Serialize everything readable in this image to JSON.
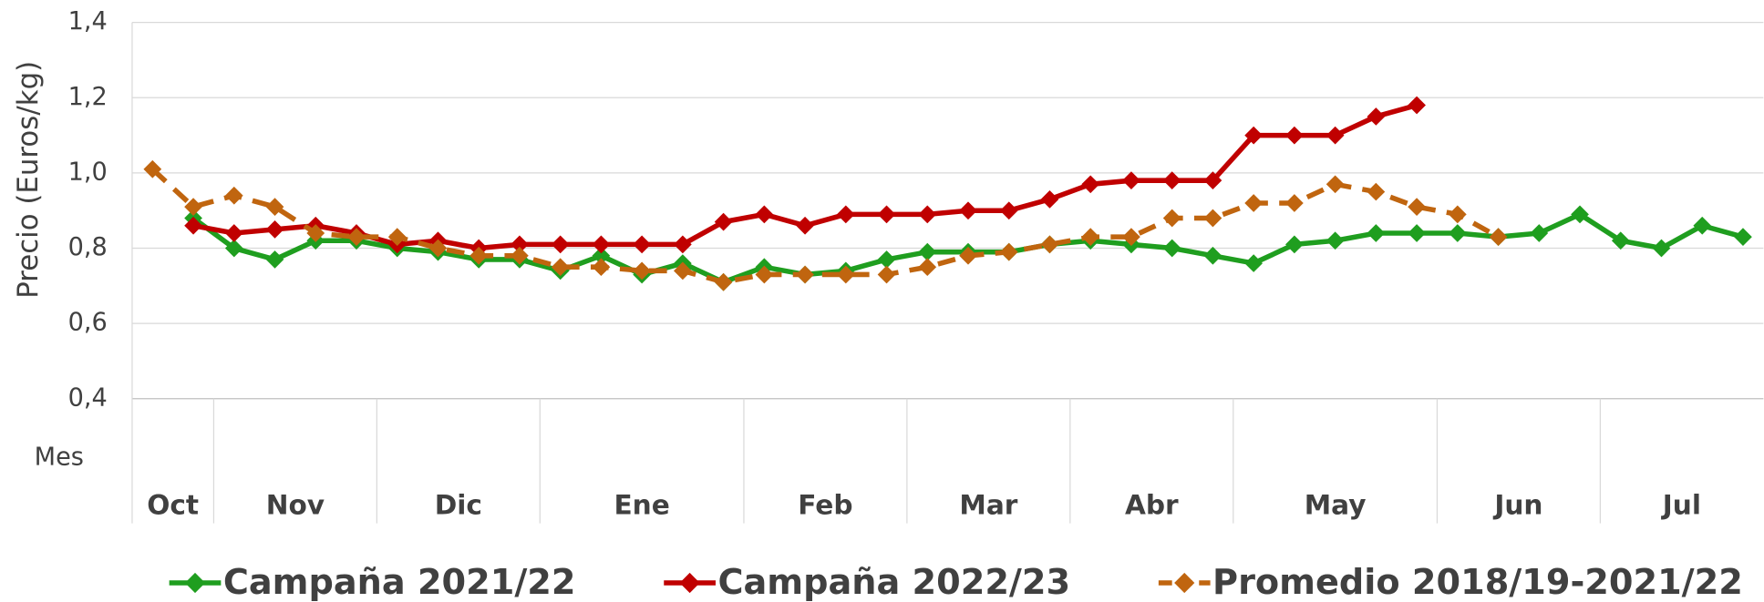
{
  "chart_data": {
    "type": "line",
    "y_label": "Precio (Euros/kg)",
    "x_label": "Mes",
    "categories": [
      "Oct",
      "Oct",
      "Nov",
      "Nov",
      "Nov",
      "Nov",
      "Dic",
      "Dic",
      "Dic",
      "Dic",
      "Ene",
      "Ene",
      "Ene",
      "Ene",
      "Ene",
      "Feb",
      "Feb",
      "Feb",
      "Feb",
      "Mar",
      "Mar",
      "Mar",
      "Mar",
      "Abr",
      "Abr",
      "Abr",
      "Abr",
      "May",
      "May",
      "May",
      "May",
      "May",
      "Jun",
      "Jun",
      "Jun",
      "Jun",
      "Jul",
      "Jul",
      "Jul",
      "Jul"
    ],
    "ylim": [
      0.4,
      1.4
    ],
    "yticks": [
      {
        "value": 0.4,
        "label": "0,4"
      },
      {
        "value": 0.6,
        "label": "0,6"
      },
      {
        "value": 0.8,
        "label": "0,8"
      },
      {
        "value": 1.0,
        "label": "1,0"
      },
      {
        "value": 1.2,
        "label": "1,2"
      },
      {
        "value": 1.4,
        "label": "1,4"
      }
    ],
    "grid": true,
    "series": [
      {
        "name": "Campaña 2021/22",
        "color": "#1f9e1f",
        "dashed": false,
        "values": [
          null,
          0.88,
          0.8,
          0.77,
          0.82,
          0.82,
          0.8,
          0.79,
          0.77,
          0.77,
          0.74,
          0.78,
          0.73,
          0.76,
          0.71,
          0.75,
          0.73,
          0.74,
          0.77,
          0.79,
          0.79,
          0.79,
          0.81,
          0.82,
          0.81,
          0.8,
          0.78,
          0.76,
          0.81,
          0.82,
          0.84,
          0.84,
          0.84,
          0.83,
          0.84,
          0.89,
          0.82,
          0.8,
          0.86,
          0.83
        ]
      },
      {
        "name": "Campaña 2022/23",
        "color": "#c00000",
        "dashed": false,
        "values": [
          null,
          0.86,
          0.84,
          0.85,
          0.86,
          0.84,
          0.81,
          0.82,
          0.8,
          0.81,
          0.81,
          0.81,
          0.81,
          0.81,
          0.87,
          0.89,
          0.86,
          0.89,
          0.89,
          0.89,
          0.9,
          0.9,
          0.93,
          0.97,
          0.98,
          0.98,
          0.98,
          1.1,
          1.1,
          1.1,
          1.15,
          1.18,
          null,
          null,
          null,
          null,
          null,
          null,
          null,
          null
        ]
      },
      {
        "name": "Promedio 2018/19-2021/22",
        "color": "#c0650f",
        "dashed": true,
        "values": [
          1.01,
          0.91,
          0.94,
          0.91,
          0.84,
          0.83,
          0.83,
          0.8,
          0.78,
          0.78,
          0.75,
          0.75,
          0.74,
          0.74,
          0.71,
          0.73,
          0.73,
          0.73,
          0.73,
          0.75,
          0.78,
          0.79,
          0.81,
          0.83,
          0.83,
          0.88,
          0.88,
          0.92,
          0.92,
          0.97,
          0.95,
          0.91,
          0.89,
          0.83,
          null,
          null,
          null,
          null,
          null,
          null
        ]
      }
    ]
  }
}
